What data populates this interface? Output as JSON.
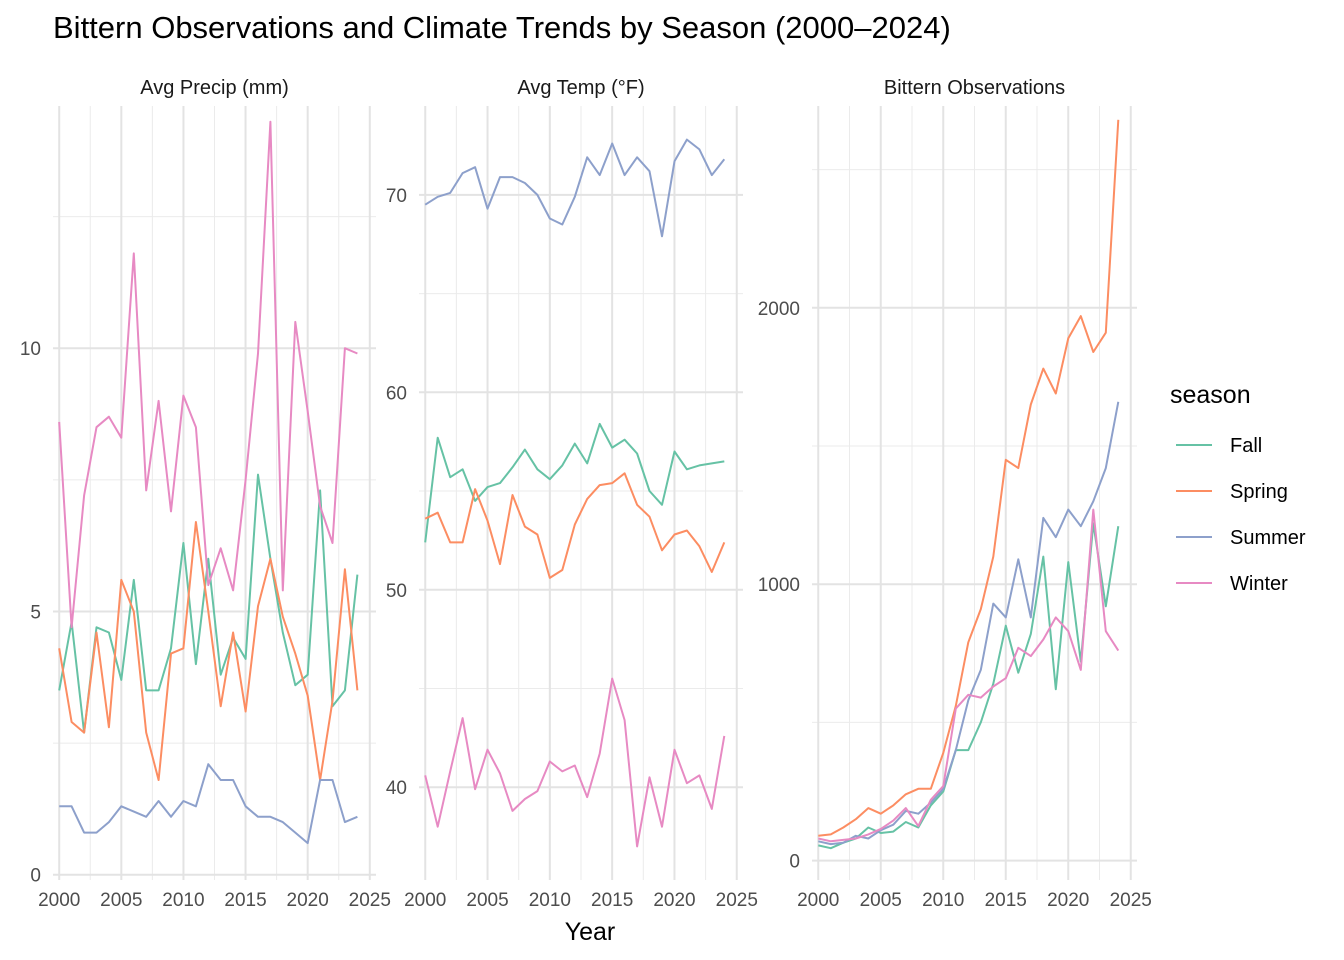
{
  "chart_data": {
    "type": "line",
    "title": "Bittern Observations and Climate Trends by Season (2000–2024)",
    "xlabel": "Year",
    "ylabel": "",
    "facets": "free y scales, one panel per measure",
    "legend": {
      "title": "season",
      "position": "right",
      "entries": [
        "Fall",
        "Spring",
        "Summer",
        "Winter"
      ]
    },
    "grid": true,
    "colors": {
      "Fall": "#66C2A5",
      "Spring": "#FC8D62",
      "Summer": "#8DA0CB",
      "Winter": "#E78AC3"
    },
    "x": [
      2000,
      2001,
      2002,
      2003,
      2004,
      2005,
      2006,
      2007,
      2008,
      2009,
      2010,
      2011,
      2012,
      2013,
      2014,
      2015,
      2016,
      2017,
      2018,
      2019,
      2020,
      2021,
      2022,
      2023,
      2024
    ],
    "panels": [
      {
        "title": "Avg Precip (mm)",
        "xlim": [
          1999.5,
          2025.5
        ],
        "ylim": [
          -0.1,
          14.6
        ],
        "x_ticks": [
          "2000",
          "2005",
          "2010",
          "2015",
          "2020",
          "2025"
        ],
        "y_ticks": [
          "0",
          "5",
          "10"
        ],
        "series": [
          {
            "name": "Fall",
            "values": [
              3.5,
              4.8,
              2.7,
              4.7,
              4.6,
              3.7,
              5.6,
              3.5,
              3.5,
              4.3,
              6.3,
              4.0,
              6.0,
              3.8,
              4.5,
              4.1,
              7.6,
              6.0,
              4.6,
              3.6,
              3.8,
              7.3,
              3.2,
              3.5,
              5.7
            ]
          },
          {
            "name": "Spring",
            "values": [
              4.3,
              2.9,
              2.7,
              4.6,
              2.8,
              5.6,
              5.0,
              2.7,
              1.8,
              4.2,
              4.3,
              6.7,
              5.0,
              3.2,
              4.6,
              3.1,
              5.1,
              6.0,
              4.9,
              4.2,
              3.4,
              1.8,
              3.3,
              5.8,
              3.5
            ]
          },
          {
            "name": "Summer",
            "values": [
              1.3,
              1.3,
              0.8,
              0.8,
              1.0,
              1.3,
              1.2,
              1.1,
              1.4,
              1.1,
              1.4,
              1.3,
              2.1,
              1.8,
              1.8,
              1.3,
              1.1,
              1.1,
              1.0,
              0.8,
              0.6,
              1.8,
              1.8,
              1.0,
              1.1
            ]
          },
          {
            "name": "Winter",
            "values": [
              8.6,
              4.7,
              7.2,
              8.5,
              8.7,
              8.3,
              11.8,
              7.3,
              9.0,
              6.9,
              9.1,
              8.5,
              5.5,
              6.2,
              5.4,
              7.5,
              9.9,
              14.3,
              5.4,
              10.5,
              8.8,
              7.0,
              6.3,
              10.0,
              9.9
            ]
          }
        ]
      },
      {
        "title": "Avg Temp (°F)",
        "xlim": [
          1999.5,
          2025.5
        ],
        "ylim": [
          35.3,
          74.5
        ],
        "x_ticks": [
          "2000",
          "2005",
          "2010",
          "2015",
          "2020",
          "2025"
        ],
        "y_ticks": [
          "40",
          "50",
          "60",
          "70"
        ],
        "series": [
          {
            "name": "Fall",
            "values": [
              52.4,
              57.7,
              55.7,
              56.1,
              54.5,
              55.2,
              55.4,
              56.2,
              57.1,
              56.1,
              55.6,
              56.3,
              57.4,
              56.4,
              58.4,
              57.2,
              57.6,
              56.9,
              55.0,
              54.3,
              57.0,
              56.1,
              56.3,
              56.4,
              56.5
            ]
          },
          {
            "name": "Spring",
            "values": [
              53.6,
              53.9,
              52.4,
              52.4,
              55.1,
              53.5,
              51.3,
              54.8,
              53.2,
              52.8,
              50.6,
              51.0,
              53.3,
              54.6,
              55.3,
              55.4,
              55.9,
              54.3,
              53.7,
              52.0,
              52.8,
              53.0,
              52.2,
              50.9,
              52.4
            ]
          },
          {
            "name": "Summer",
            "values": [
              69.5,
              69.9,
              70.1,
              71.1,
              71.4,
              69.3,
              70.9,
              70.9,
              70.6,
              70.0,
              68.8,
              68.5,
              69.9,
              71.9,
              71.0,
              72.6,
              71.0,
              71.9,
              71.2,
              67.9,
              71.7,
              72.8,
              72.3,
              71.0,
              71.8
            ]
          },
          {
            "name": "Winter",
            "values": [
              40.6,
              38.0,
              40.8,
              43.5,
              39.9,
              41.9,
              40.7,
              38.8,
              39.4,
              39.8,
              41.3,
              40.8,
              41.1,
              39.5,
              41.7,
              45.5,
              43.4,
              37.0,
              40.5,
              38.0,
              41.9,
              40.2,
              40.6,
              38.9,
              42.6
            ]
          }
        ]
      },
      {
        "title": "Bittern Observations",
        "xlim": [
          1999.5,
          2025.5
        ],
        "ylim": [
          -70,
          2730
        ],
        "x_ticks": [
          "2000",
          "2005",
          "2010",
          "2015",
          "2020",
          "2025"
        ],
        "y_ticks": [
          "0",
          "1000",
          "2000"
        ],
        "series": [
          {
            "name": "Fall",
            "values": [
              55,
              45,
              65,
              80,
              120,
              100,
              105,
              140,
              120,
              200,
              250,
              400,
              400,
              500,
              640,
              850,
              680,
              820,
              1100,
              620,
              1080,
              720,
              1220,
              920,
              1210
            ]
          },
          {
            "name": "Spring",
            "values": [
              90,
              95,
              120,
              150,
              190,
              170,
              200,
              240,
              260,
              260,
              390,
              560,
              790,
              910,
              1100,
              1450,
              1420,
              1650,
              1780,
              1690,
              1890,
              1970,
              1840,
              1910,
              2680
            ]
          },
          {
            "name": "Summer",
            "values": [
              70,
              60,
              65,
              90,
              80,
              110,
              130,
              180,
              170,
              210,
              260,
              400,
              580,
              690,
              930,
              880,
              1090,
              880,
              1240,
              1170,
              1270,
              1210,
              1300,
              1420,
              1660
            ]
          },
          {
            "name": "Winter",
            "values": [
              80,
              70,
              75,
              80,
              95,
              115,
              145,
              190,
              125,
              220,
              270,
              550,
              600,
              590,
              630,
              660,
              770,
              740,
              800,
              880,
              830,
              690,
              1270,
              830,
              760
            ]
          }
        ]
      }
    ]
  }
}
